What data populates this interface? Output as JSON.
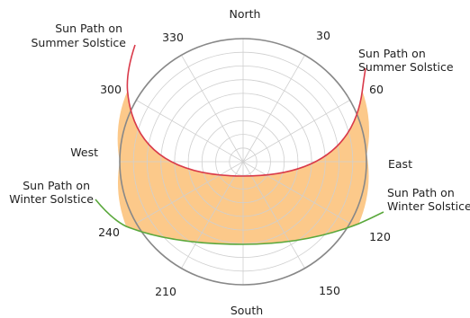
{
  "compass": {
    "north": "North",
    "south": "South",
    "east": "East",
    "west": "West"
  },
  "bearings": [
    "30",
    "60",
    "120",
    "150",
    "210",
    "240",
    "300",
    "330"
  ],
  "annotations": {
    "summer_left_line1": "Sun Path on",
    "summer_left_line2": "Summer Solstice",
    "summer_right_line1": "Sun Path on",
    "summer_right_line2": "Summer Solstice",
    "winter_left_line1": "Sun Path on",
    "winter_left_line2": "Winter Solstice",
    "winter_right_line1": "Sun Path on",
    "winter_right_line2": "Winter Solstice"
  },
  "colors": {
    "summer_path": "#d93a4a",
    "winter_path": "#5aa83c",
    "daylight_fill": "#fcc98a",
    "grid": "#cfcfcf",
    "outer_ring": "#888888"
  }
}
